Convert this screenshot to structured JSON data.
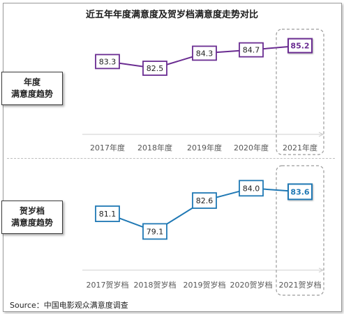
{
  "title": "近五年年度满意度及贺岁档满意度走势对比",
  "source": "Source：中国电影观众满意度调查",
  "panels": {
    "annual": {
      "label_line1": "年度",
      "label_line2": "满意度趋势"
    },
    "newyear": {
      "label_line1": "贺岁档",
      "label_line2": "满意度趋势"
    }
  },
  "colors": {
    "annual": "#6a2c91",
    "newyear": "#1f78b4",
    "highlight_box": "#9a9a9a"
  },
  "chart_data": [
    {
      "type": "line",
      "name_ref": "年度满意度趋势",
      "categories": [
        "2017年度",
        "2018年度",
        "2019年度",
        "2020年度",
        "2021年度"
      ],
      "values": [
        83.3,
        82.5,
        84.3,
        84.7,
        85.2
      ],
      "data_labels": [
        "83.3",
        "82.5",
        "84.3",
        "84.7",
        "85.2"
      ],
      "highlight_last": true,
      "ylim": [
        82,
        85.5
      ]
    },
    {
      "type": "line",
      "name_ref": "贺岁档满意度趋势",
      "categories": [
        "2017贺岁档",
        "2018贺岁档",
        "2019贺岁档",
        "2020贺岁档",
        "2021贺岁档"
      ],
      "values": [
        81.1,
        79.1,
        82.6,
        84.0,
        83.6
      ],
      "data_labels": [
        "81.1",
        "79.1",
        "82.6",
        "84.0",
        "83.6"
      ],
      "highlight_last": true,
      "ylim": [
        78.5,
        84.5
      ]
    }
  ]
}
